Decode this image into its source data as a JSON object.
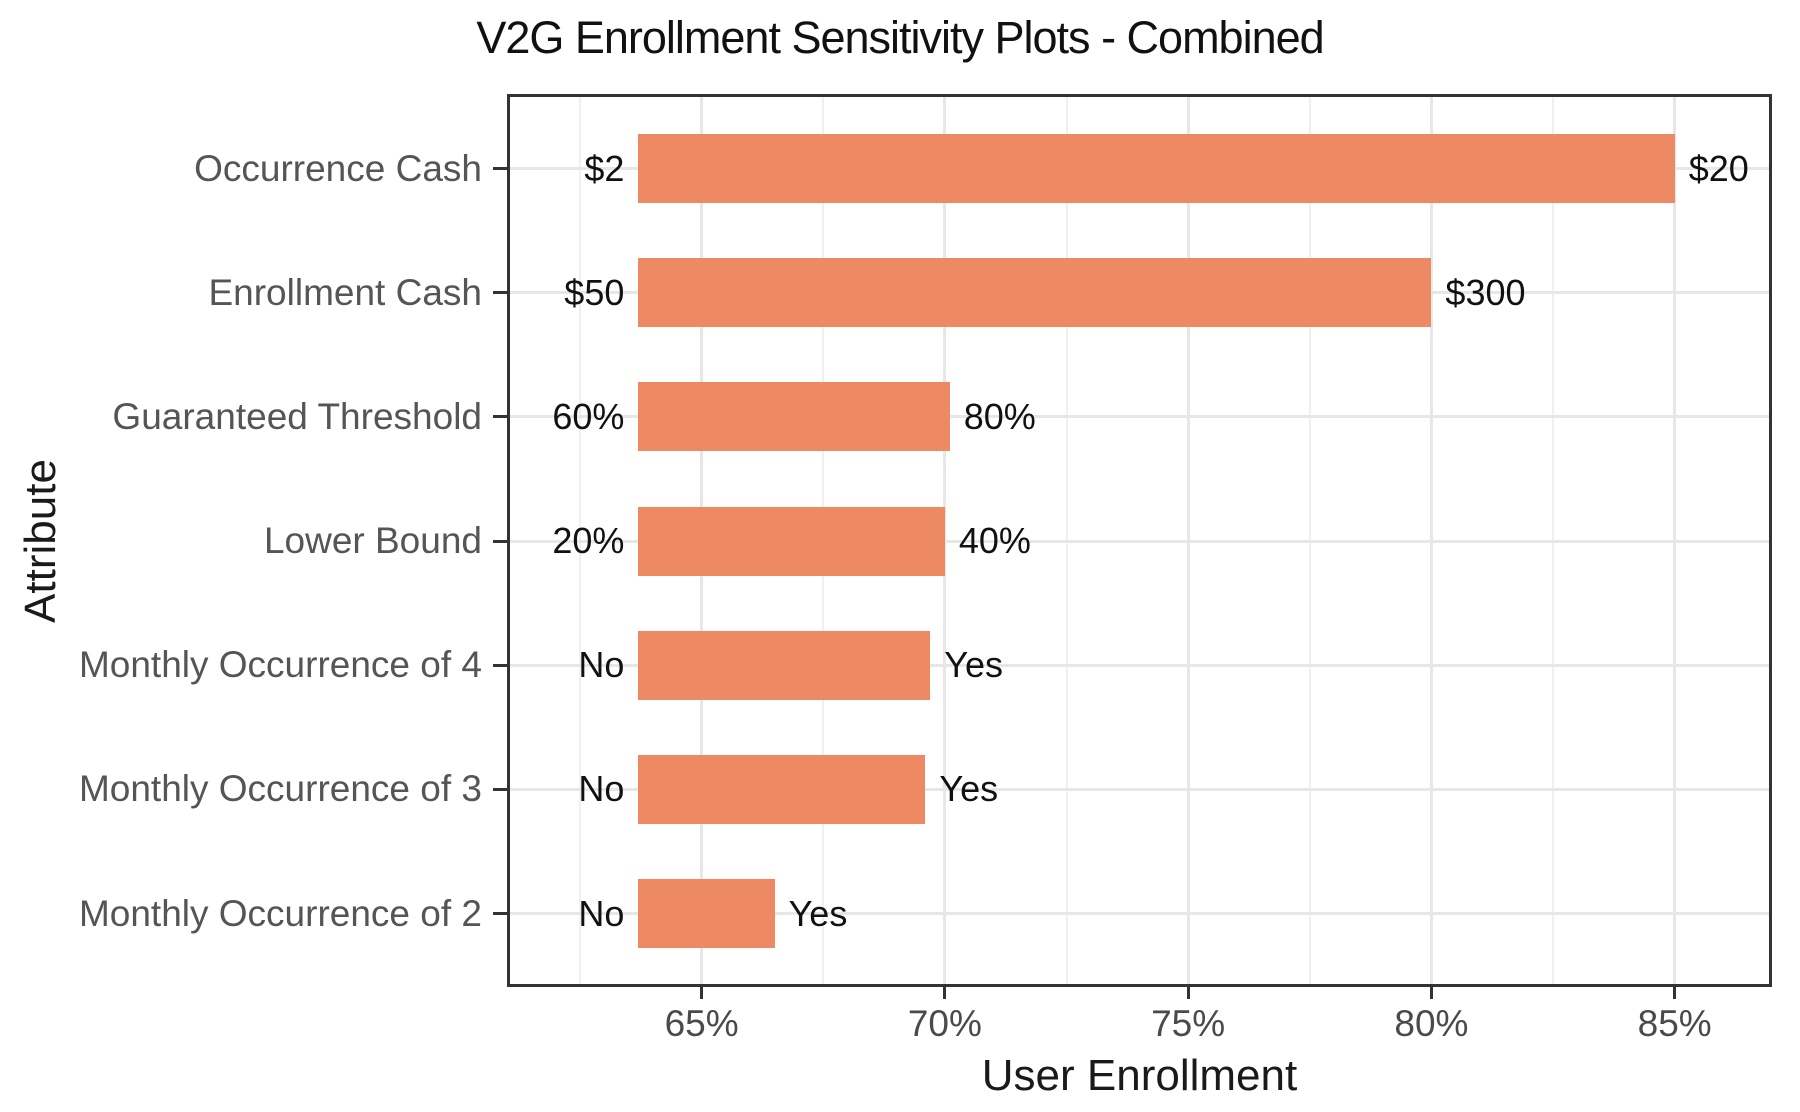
{
  "figure": {
    "background": "#ffffff"
  },
  "chart_data": {
    "type": "bar",
    "orientation": "horizontal",
    "title": "V2G Enrollment Sensitivity Plots - Combined",
    "xlabel": "User Enrollment",
    "ylabel": "Attribute",
    "xlim": [
      61,
      87
    ],
    "x_major_ticks": [
      {
        "value": 65,
        "label": "65%"
      },
      {
        "value": 70,
        "label": "70%"
      },
      {
        "value": 75,
        "label": "75%"
      },
      {
        "value": 80,
        "label": "80%"
      },
      {
        "value": 85,
        "label": "85%"
      }
    ],
    "x_minor_ticks": [
      62.5,
      67.5,
      72.5,
      77.5,
      82.5
    ],
    "grid": {
      "vertical": "major+minor",
      "horizontal": "major-at-category-centers"
    },
    "legend": "none",
    "bar_color": "#ED8A63",
    "rows": [
      {
        "attribute": "Occurrence Cash",
        "low_label": "$2",
        "high_label": "$20",
        "low_pct": 63.7,
        "high_pct": 85.0
      },
      {
        "attribute": "Enrollment Cash",
        "low_label": "$50",
        "high_label": "$300",
        "low_pct": 63.7,
        "high_pct": 80.0
      },
      {
        "attribute": "Guaranteed Threshold",
        "low_label": "60%",
        "high_label": "80%",
        "low_pct": 63.7,
        "high_pct": 70.1
      },
      {
        "attribute": "Lower Bound",
        "low_label": "20%",
        "high_label": "40%",
        "low_pct": 63.7,
        "high_pct": 70.0
      },
      {
        "attribute": "Monthly Occurrence of 4",
        "low_label": "No",
        "high_label": "Yes",
        "low_pct": 63.7,
        "high_pct": 69.7
      },
      {
        "attribute": "Monthly Occurrence of 3",
        "low_label": "No",
        "high_label": "Yes",
        "low_pct": 63.7,
        "high_pct": 69.6
      },
      {
        "attribute": "Monthly Occurrence of 2",
        "low_label": "No",
        "high_label": "Yes",
        "low_pct": 63.7,
        "high_pct": 66.5
      }
    ],
    "colors": {
      "bar": "#ED8A63",
      "panel_border": "#333333",
      "grid_major": "#e7e7e7",
      "grid_minor": "#f0f0f0",
      "tick_mark": "#333333",
      "tick_label": "#4a4a4a",
      "category_label": "#555555",
      "data_label": "#111111",
      "title": "#111111"
    }
  }
}
